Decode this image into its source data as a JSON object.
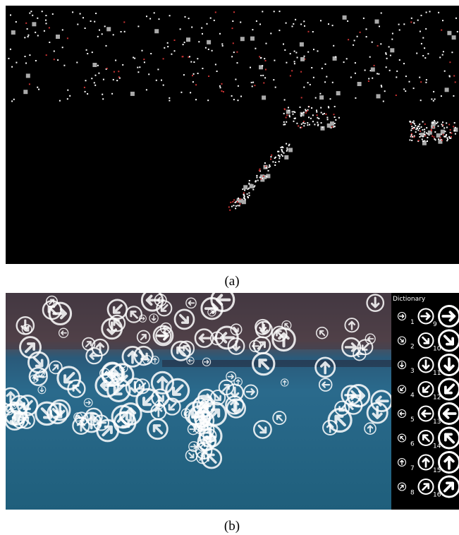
{
  "panels": [
    {
      "label": "(a)"
    },
    {
      "label": "(b)"
    }
  ],
  "dictionary": {
    "title": "Dictionary",
    "entries": [
      [
        1,
        9
      ],
      [
        2,
        10
      ],
      [
        3,
        11
      ],
      [
        4,
        12
      ],
      [
        5,
        13
      ],
      [
        6,
        14
      ],
      [
        7,
        15
      ],
      [
        8,
        16
      ]
    ]
  }
}
